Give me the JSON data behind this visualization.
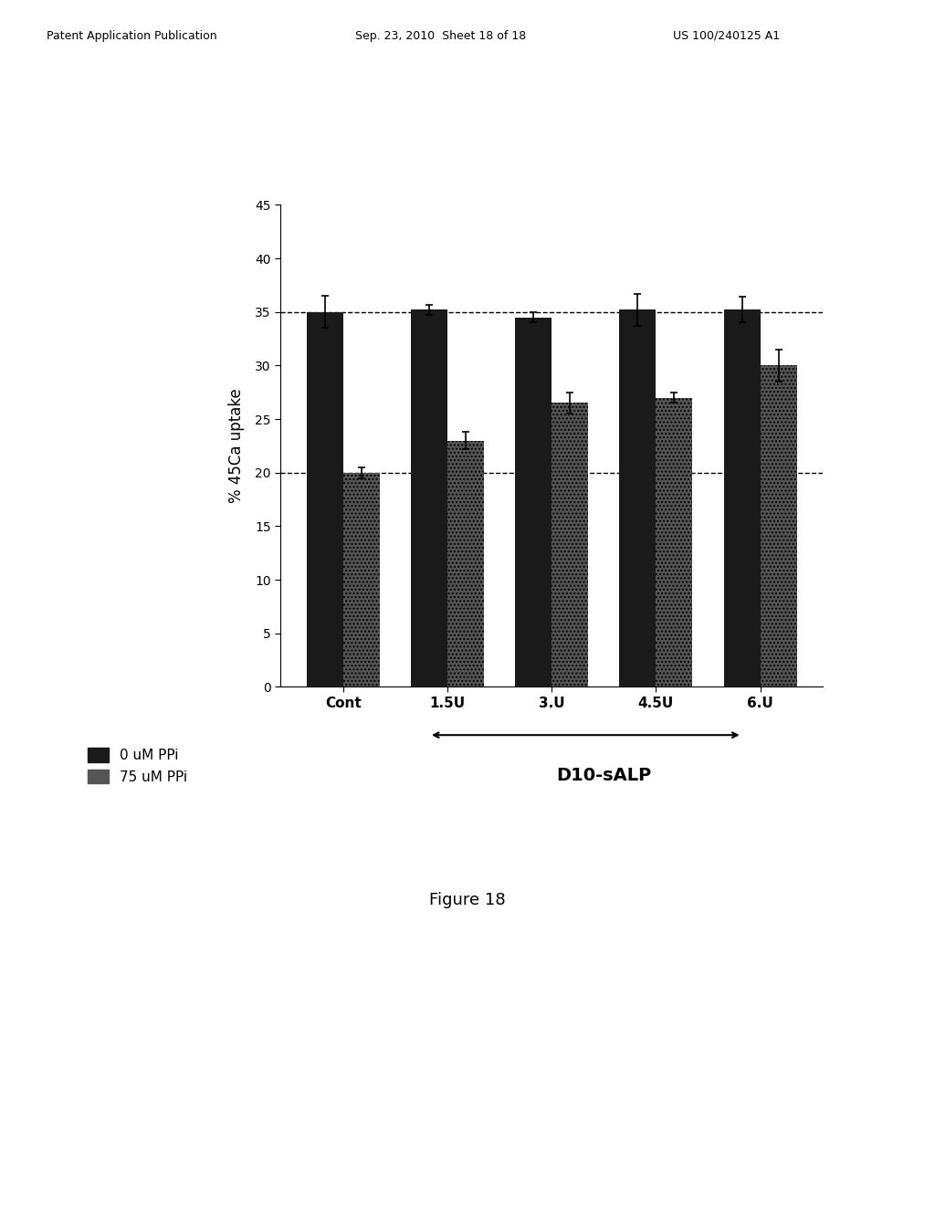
{
  "groups": [
    "Cont",
    "1.5U",
    "3.U",
    "4.5U",
    "6.U"
  ],
  "bar_values_black": [
    35.0,
    35.2,
    34.5,
    35.2,
    35.2
  ],
  "bar_values_gray": [
    20.0,
    23.0,
    26.5,
    27.0,
    30.0
  ],
  "bar_errors_black": [
    1.5,
    0.5,
    0.5,
    1.5,
    1.2
  ],
  "bar_errors_gray": [
    0.5,
    0.8,
    1.0,
    0.5,
    1.5
  ],
  "color_black": "#1a1a1a",
  "color_gray": "#555555",
  "hatch_gray": "....",
  "ylabel": "% 45Ca uptake",
  "ylim": [
    0,
    45
  ],
  "yticks": [
    0,
    5,
    10,
    15,
    20,
    25,
    30,
    35,
    40,
    45
  ],
  "hline1": 35.0,
  "hline2": 20.0,
  "xlabel_arrow": "D10-sALP",
  "legend_label_black": "0 uM PPi",
  "legend_label_gray": "75 uM PPi",
  "figure_title": "Figure 18",
  "bar_width": 0.35,
  "background_color": "#ffffff"
}
